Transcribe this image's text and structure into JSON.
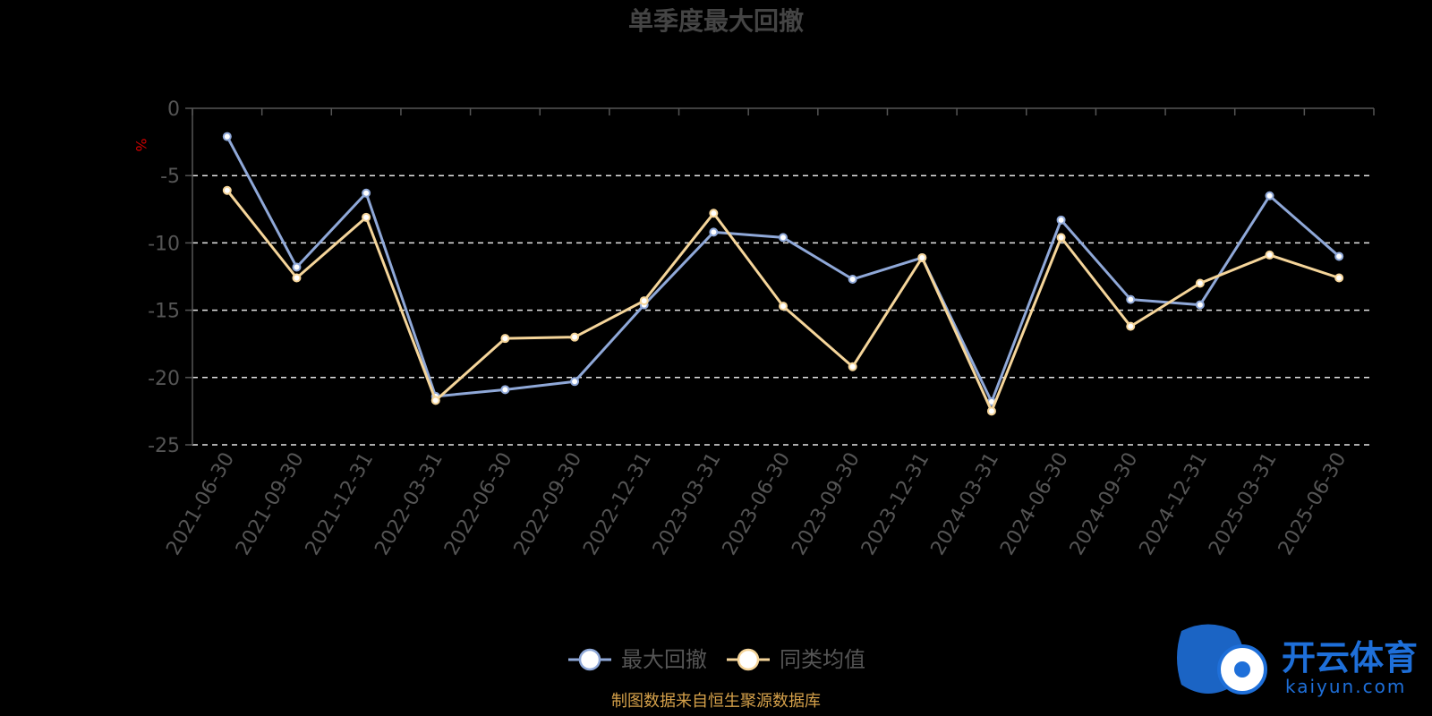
{
  "chart_data": {
    "type": "line",
    "title": "单季度最大回撤",
    "ylabel": "%",
    "ylim": [
      -25,
      0
    ],
    "yticks": [
      0,
      -5,
      -10,
      -15,
      -20,
      -25
    ],
    "grid": true,
    "legend_position": "bottom",
    "categories": [
      "2021-06-30",
      "2021-09-30",
      "2021-12-31",
      "2022-03-31",
      "2022-06-30",
      "2022-09-30",
      "2022-12-31",
      "2023-03-31",
      "2023-06-30",
      "2023-09-30",
      "2023-12-31",
      "2024-03-31",
      "2024-06-30",
      "2024-09-30",
      "2024-12-31",
      "2025-03-31",
      "2025-06-30"
    ],
    "series": [
      {
        "name": "最大回撤",
        "color": "#8fa8d8",
        "values": [
          -2.1,
          -11.8,
          -6.3,
          -21.4,
          -20.9,
          -20.3,
          -14.6,
          -9.2,
          -9.6,
          -12.7,
          -11.1,
          -21.8,
          -8.3,
          -14.2,
          -14.6,
          -6.5,
          -11.0
        ]
      },
      {
        "name": "同类均值",
        "color": "#f5d59a",
        "values": [
          -6.1,
          -12.6,
          -8.1,
          -21.7,
          -17.1,
          -17.0,
          -14.3,
          -7.8,
          -14.7,
          -19.2,
          -11.1,
          -22.5,
          -9.6,
          -16.2,
          -13.0,
          -10.9,
          -12.6
        ]
      }
    ]
  },
  "source_note": "制图数据来自恒生聚源数据库",
  "watermark": {
    "name": "开云体育",
    "domain": "kaiyun.com"
  }
}
